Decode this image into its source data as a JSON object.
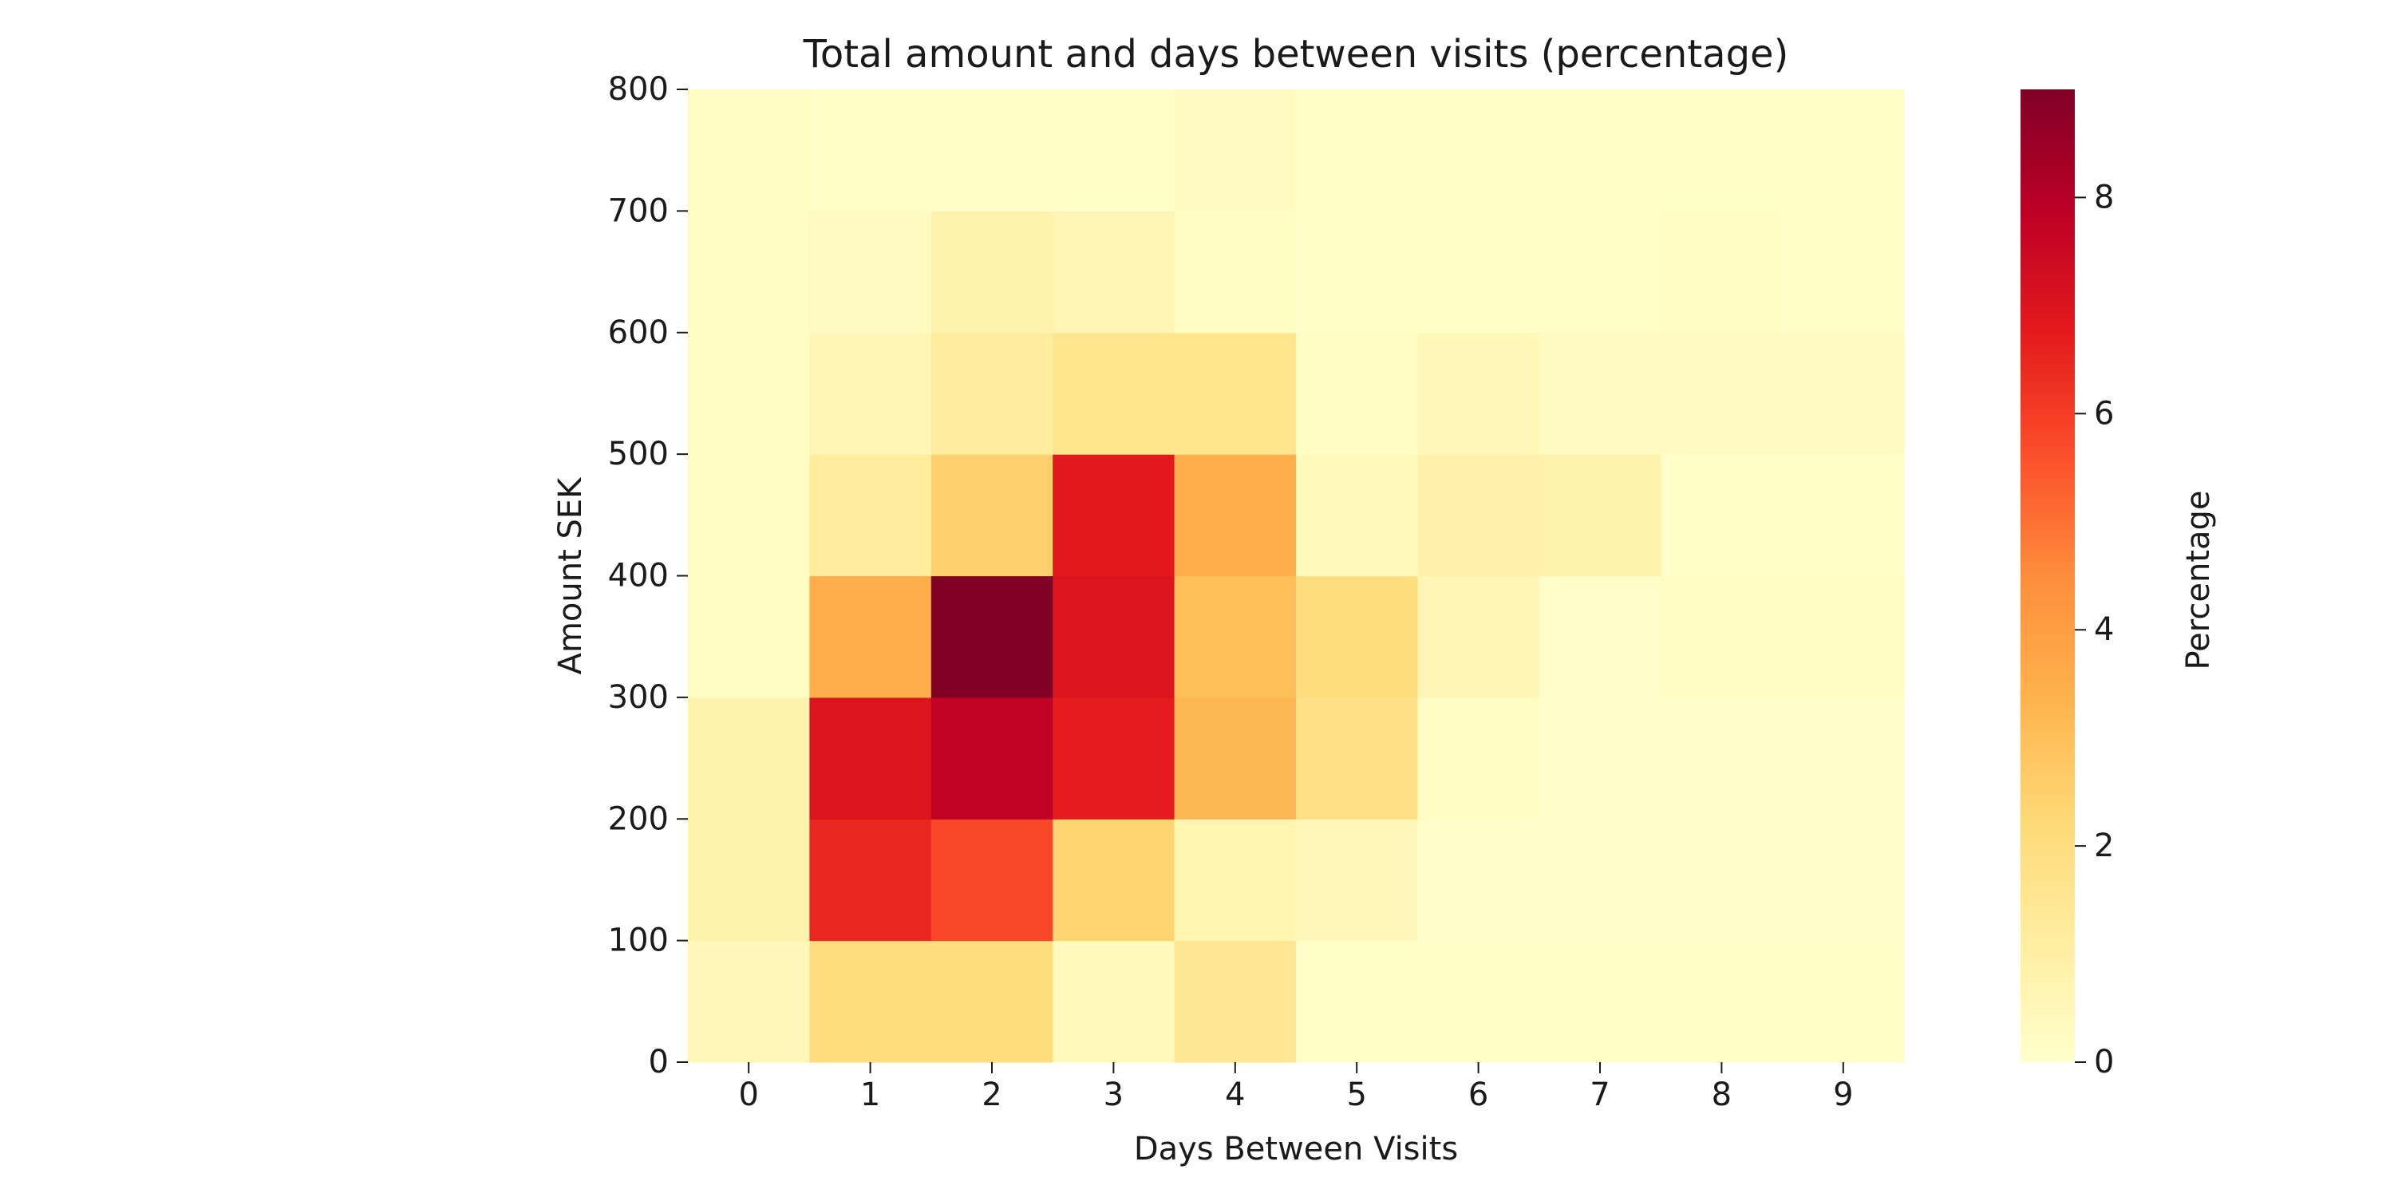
{
  "chart_data": {
    "type": "heatmap",
    "title": "Total amount and days between visits (percentage)",
    "xlabel": "Days Between Visits",
    "ylabel": "Amount SEK",
    "x_categories": [
      "0",
      "1",
      "2",
      "3",
      "4",
      "5",
      "6",
      "7",
      "8",
      "9"
    ],
    "y_bins": [
      "0-100",
      "100-200",
      "200-300",
      "300-400",
      "400-500",
      "500-600",
      "600-700",
      "700-800"
    ],
    "y_ticks": [
      0,
      100,
      200,
      300,
      400,
      500,
      600,
      700,
      800
    ],
    "ylim": [
      0,
      800
    ],
    "values": [
      [
        0.5,
        2.0,
        2.0,
        0.4,
        1.5,
        0.1,
        0.1,
        0.1,
        0.1,
        0.1
      ],
      [
        0.8,
        6.5,
        5.8,
        2.4,
        0.7,
        0.5,
        0.05,
        0.05,
        0.05,
        0.05
      ],
      [
        0.8,
        7.0,
        7.8,
        6.7,
        3.2,
        1.8,
        0.2,
        0.05,
        0.05,
        0.05
      ],
      [
        0.2,
        3.5,
        9.0,
        7.0,
        3.0,
        2.0,
        0.6,
        0.05,
        0.2,
        0.2
      ],
      [
        0.2,
        1.2,
        2.5,
        6.8,
        3.5,
        0.4,
        0.9,
        0.8,
        0.1,
        0.1
      ],
      [
        0.2,
        0.6,
        1.2,
        1.6,
        1.6,
        0.2,
        0.5,
        0.3,
        0.3,
        0.3
      ],
      [
        0.2,
        0.3,
        0.8,
        0.6,
        0.2,
        0.1,
        0.1,
        0.1,
        0.2,
        0.1
      ],
      [
        0.2,
        0.1,
        0.1,
        0.1,
        0.3,
        0.1,
        0.1,
        0.1,
        0.1,
        0.1
      ]
    ],
    "colorbar": {
      "label": "Percentage",
      "min": 0,
      "max": 9,
      "ticks": [
        0,
        2,
        4,
        6,
        8
      ],
      "colormap": "YlOrRd",
      "colors": [
        "#ffffcc",
        "#ffeda0",
        "#fed976",
        "#feb24c",
        "#fd8d3c",
        "#fc4e2a",
        "#e31a1c",
        "#bd0026",
        "#800026"
      ]
    }
  }
}
